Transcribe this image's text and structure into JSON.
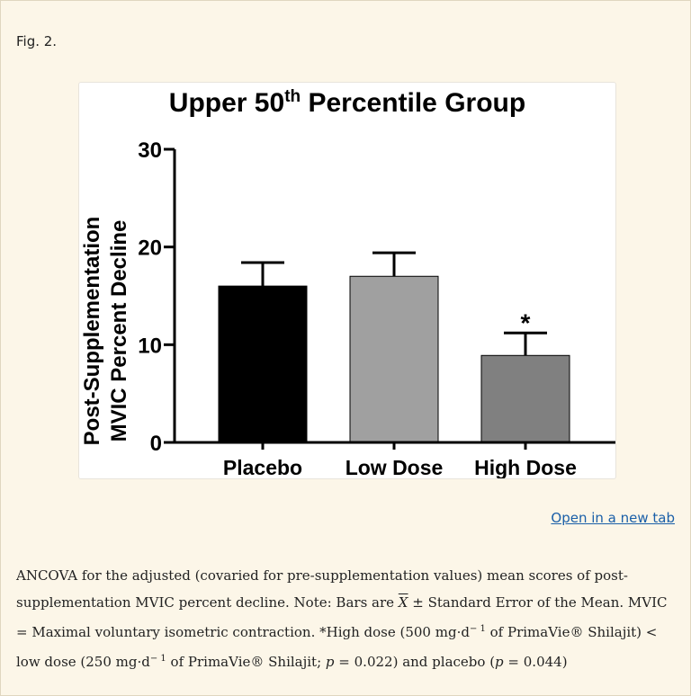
{
  "figure_label": "Fig. 2.",
  "open_link": "Open in a new tab",
  "chart_data": {
    "type": "bar",
    "title_main": "Upper 50",
    "title_sup": "th",
    "title_rest": " Percentile Group",
    "ylabel_line1": "Post-Supplementation",
    "ylabel_line2": "MVIC Percent  Decline",
    "categories": [
      "Placebo",
      "Low Dose",
      "High Dose"
    ],
    "values": [
      16,
      17,
      8.9
    ],
    "errors": [
      2.4,
      2.4,
      2.3
    ],
    "bar_colors": [
      "#000000",
      "#a0a0a0",
      "#808080"
    ],
    "significance": [
      "",
      "",
      "*"
    ],
    "ylim": [
      0,
      30
    ],
    "yticks": [
      0,
      10,
      20,
      30
    ]
  },
  "caption": {
    "p1": "ANCOVA for the adjusted (covaried for pre-supplementation values) mean scores of post-supplementation MVIC percent decline. Note: Bars are ",
    "xbar": "X",
    "p2": " ± Standard Error of the Mean. MVIC = Maximal voluntary isometric contraction. *High dose (500 mg·d",
    "sup1": "− 1",
    "p3": " of PrimaVie® Shilajit) < low dose (250 mg·d",
    "sup2": "− 1",
    "p4": " of PrimaVie® Shilajit; ",
    "p_label1": "p",
    "p5": " = 0.022) and placebo (",
    "p_label2": "p",
    "p6": " =  0.044)"
  }
}
